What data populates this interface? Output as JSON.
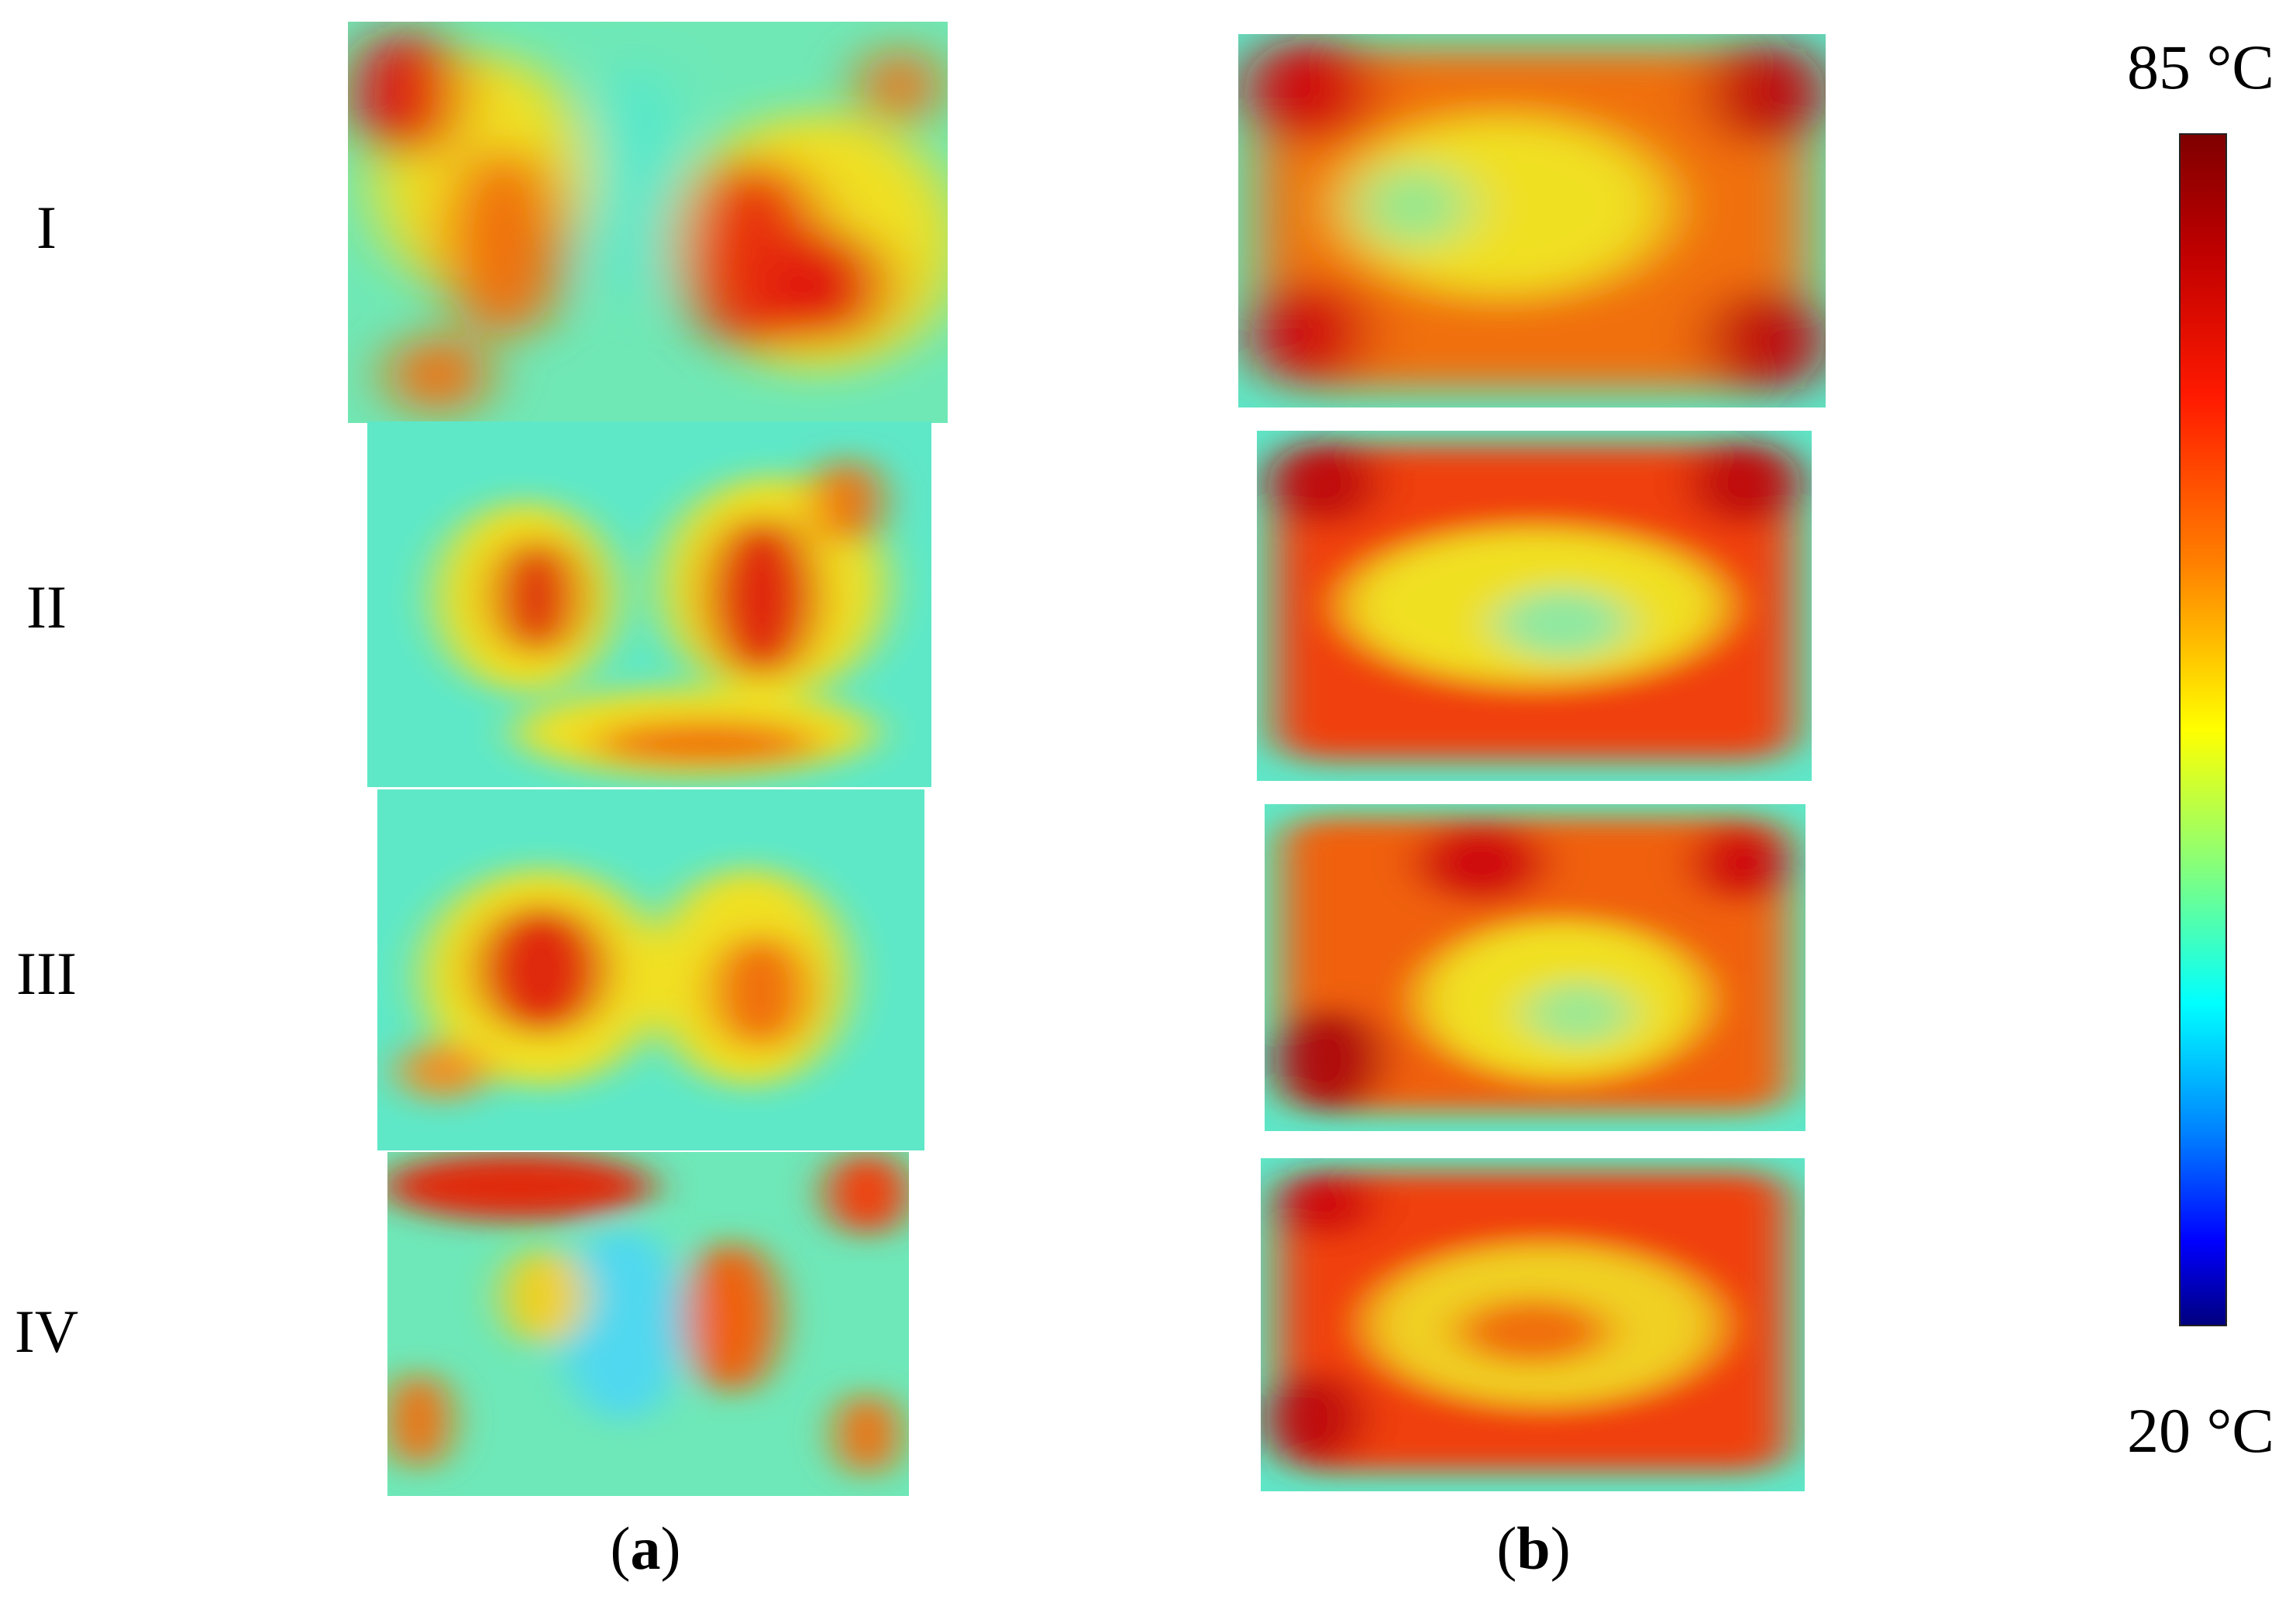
{
  "rows": [
    "I",
    "II",
    "III",
    "IV"
  ],
  "columns": [
    "a",
    "b"
  ],
  "colorbar": {
    "max_label": "85 °C",
    "min_label": "20 °C",
    "colormap": "jet",
    "max_color": "#7f0000",
    "min_color": "#00007f"
  }
}
